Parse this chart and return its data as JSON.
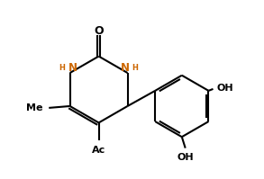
{
  "background_color": "#ffffff",
  "line_color": "#000000",
  "text_color": "#000000",
  "label_color_NH": "#cc6600",
  "line_width": 1.5,
  "font_size": 7.5,
  "fig_width": 2.93,
  "fig_height": 1.99,
  "dpi": 100,
  "xlim": [
    0.0,
    7.5
  ],
  "ylim": [
    0.8,
    5.8
  ]
}
